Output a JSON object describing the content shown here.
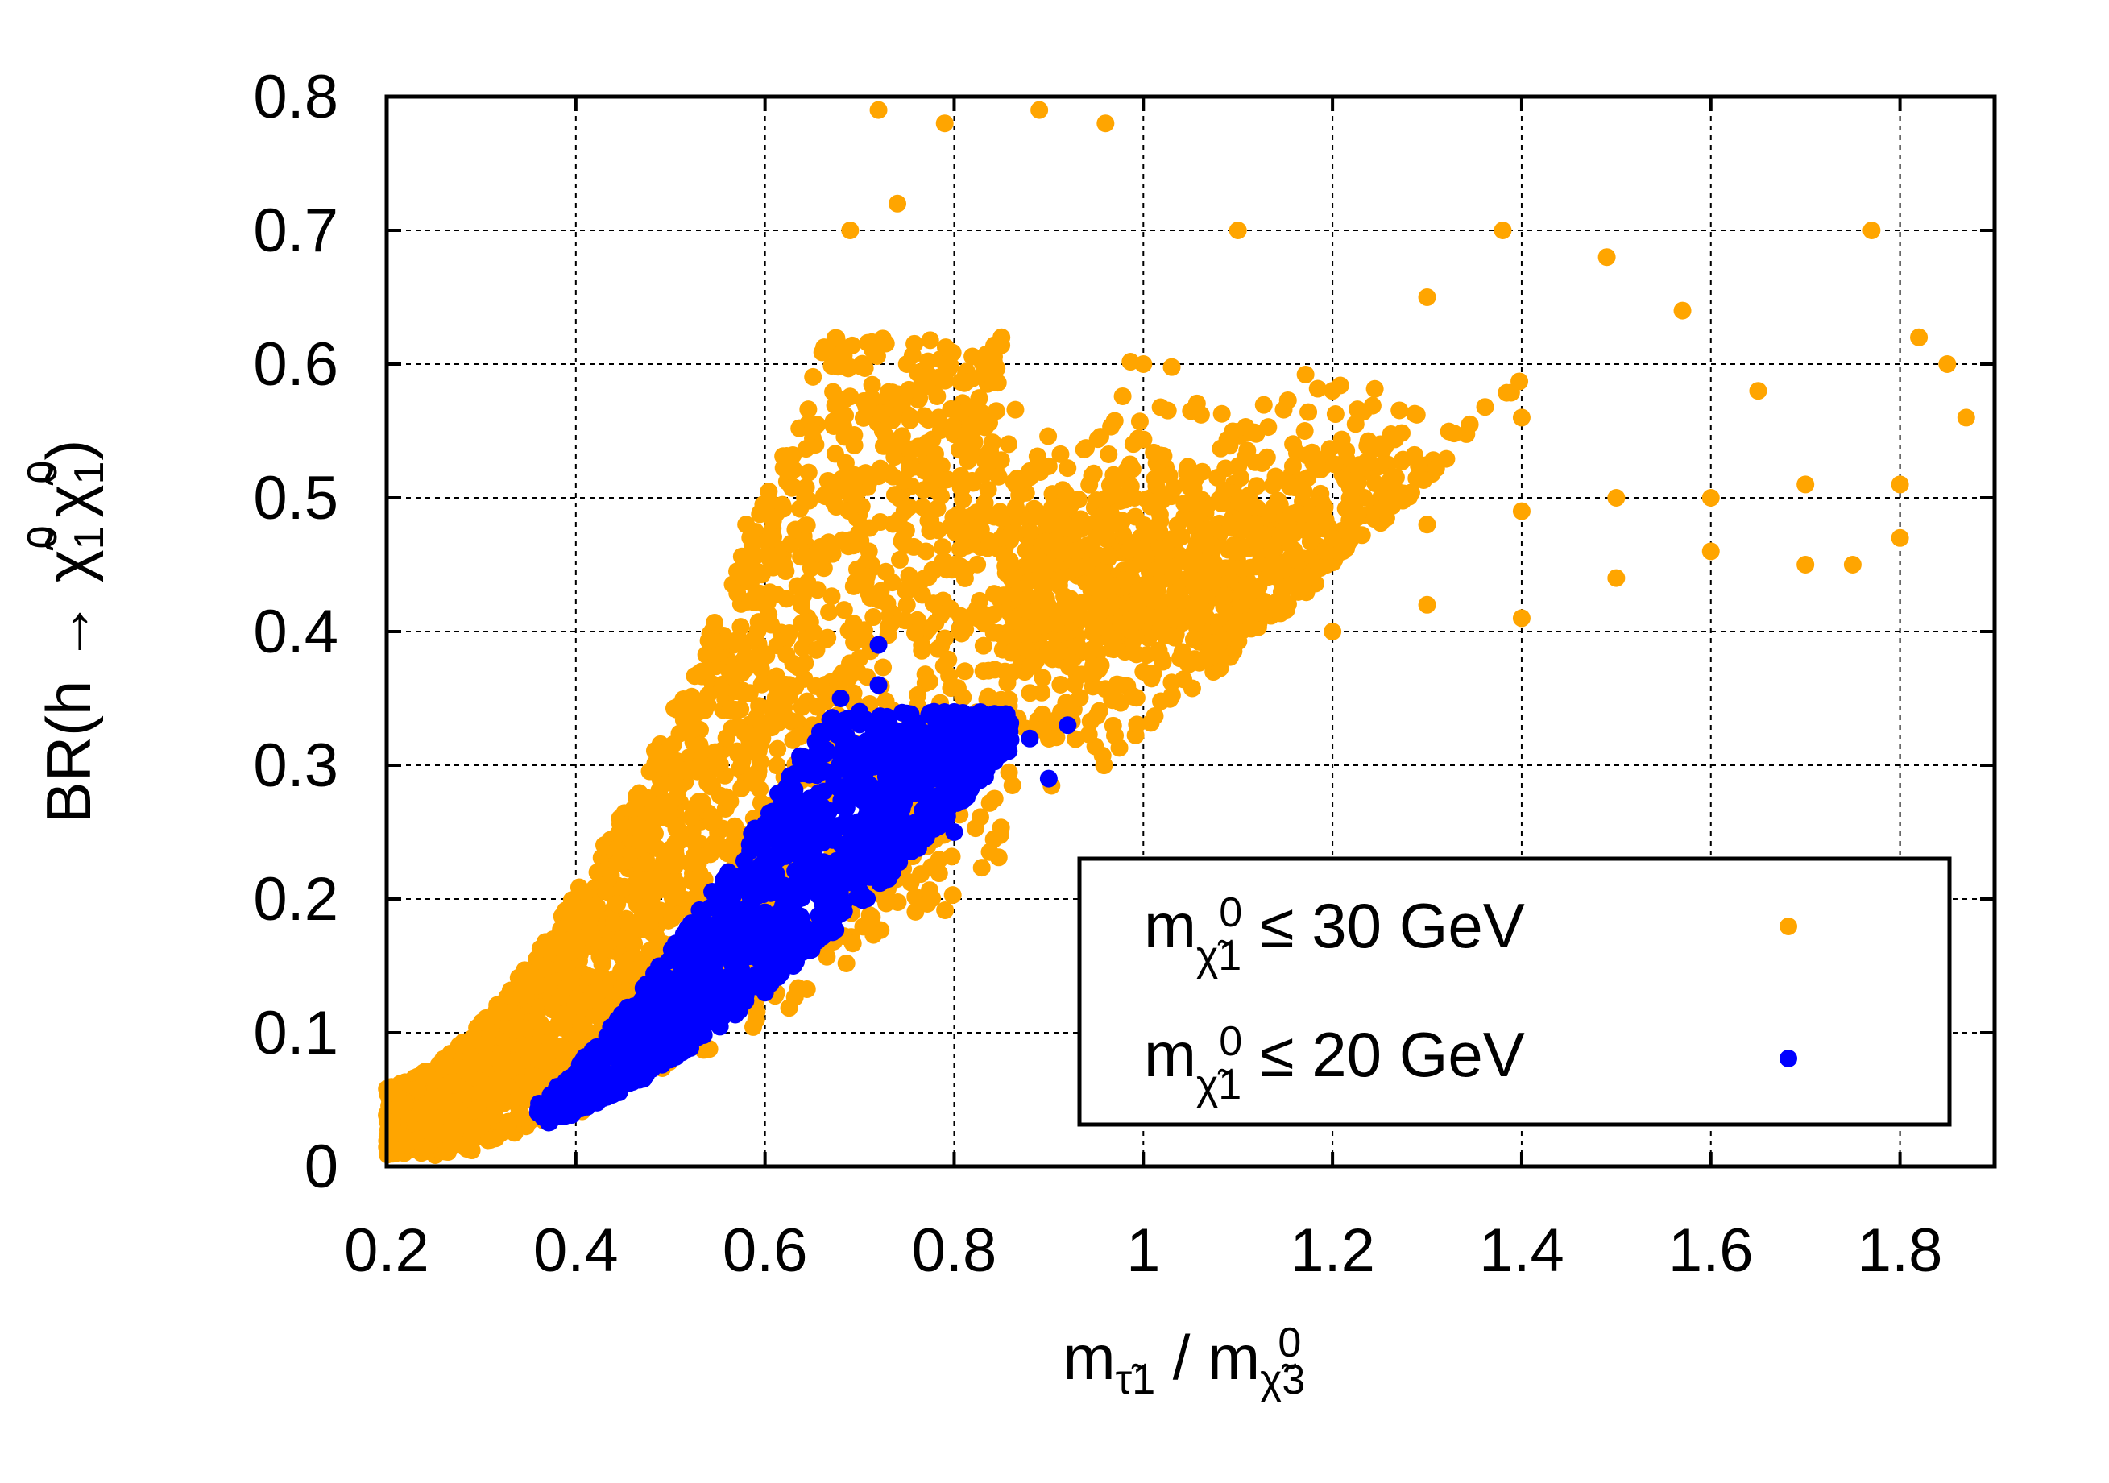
{
  "chart_data": {
    "type": "scatter",
    "title": "",
    "xlabel": "m_{τ̃1} / m_{χ̃3^0}",
    "xlabel_parts": {
      "main1": "m",
      "sub1": "τ̃",
      "sub1_idx": "1",
      "sep": " / ",
      "main2": "m",
      "sub2": "χ̃",
      "sub2_idx": "3",
      "sup2": "0"
    },
    "ylabel": "BR(h → χ̃1^0 χ̃1^0)",
    "ylabel_parts": {
      "pre": "BR(h → ",
      "chi": "χ̃",
      "idx": "1",
      "sup": "0",
      "post": ")"
    },
    "xlim": [
      0.2,
      1.9
    ],
    "ylim": [
      0,
      0.8
    ],
    "grid": true,
    "xticks": [
      "0.2",
      "0.4",
      "0.6",
      "0.8",
      "1",
      "1.2",
      "1.4",
      "1.6",
      "1.8"
    ],
    "xtick_values": [
      0.2,
      0.4,
      0.6,
      0.8,
      1.0,
      1.2,
      1.4,
      1.6,
      1.8
    ],
    "yticks": [
      "0",
      "0.1",
      "0.2",
      "0.3",
      "0.4",
      "0.5",
      "0.6",
      "0.7",
      "0.8"
    ],
    "ytick_values": [
      0,
      0.1,
      0.2,
      0.3,
      0.4,
      0.5,
      0.6,
      0.7,
      0.8
    ],
    "legend_position": "bottom-right",
    "series": [
      {
        "name": "m_{χ̃1^0} ≤ 30 GeV",
        "legend_label": {
          "m": "m",
          "chi": "χ̃",
          "idx": "1",
          "sup": "0",
          "rest": " ≤ 30 GeV"
        },
        "color": "#FFA500",
        "points": [
          [
            0.21,
            0.01
          ],
          [
            0.25,
            0.02
          ],
          [
            0.3,
            0.03
          ],
          [
            0.35,
            0.05
          ],
          [
            0.4,
            0.08
          ],
          [
            0.45,
            0.11
          ],
          [
            0.5,
            0.14
          ],
          [
            0.55,
            0.2
          ],
          [
            0.6,
            0.27
          ],
          [
            0.65,
            0.33
          ],
          [
            0.7,
            0.38
          ],
          [
            0.75,
            0.42
          ],
          [
            0.8,
            0.45
          ],
          [
            0.85,
            0.47
          ],
          [
            0.9,
            0.48
          ],
          [
            0.95,
            0.47
          ],
          [
            1.0,
            0.46
          ],
          [
            1.05,
            0.45
          ],
          [
            1.1,
            0.46
          ],
          [
            1.2,
            0.47
          ],
          [
            1.3,
            0.48
          ],
          [
            1.4,
            0.49
          ],
          [
            1.5,
            0.5
          ],
          [
            1.6,
            0.5
          ],
          [
            1.7,
            0.51
          ],
          [
            1.8,
            0.51
          ],
          [
            1.87,
            0.56
          ],
          [
            0.72,
            0.79
          ],
          [
            0.79,
            0.78
          ],
          [
            0.89,
            0.79
          ],
          [
            0.96,
            0.78
          ],
          [
            0.74,
            0.72
          ],
          [
            0.69,
            0.7
          ],
          [
            1.1,
            0.7
          ],
          [
            1.38,
            0.7
          ],
          [
            1.77,
            0.7
          ],
          [
            1.57,
            0.64
          ],
          [
            1.3,
            0.65
          ],
          [
            1.49,
            0.68
          ],
          [
            0.53,
            0.34
          ],
          [
            0.58,
            0.48
          ],
          [
            0.6,
            0.42
          ],
          [
            0.45,
            0.17
          ],
          [
            0.4,
            0.12
          ],
          [
            0.62,
            0.22
          ],
          [
            0.7,
            0.2
          ],
          [
            0.8,
            0.3
          ],
          [
            0.9,
            0.32
          ],
          [
            1.0,
            0.37
          ],
          [
            1.1,
            0.4
          ],
          [
            1.2,
            0.4
          ],
          [
            1.3,
            0.42
          ],
          [
            1.4,
            0.41
          ],
          [
            1.5,
            0.44
          ],
          [
            1.6,
            0.46
          ],
          [
            1.7,
            0.45
          ],
          [
            1.8,
            0.47
          ],
          [
            1.75,
            0.45
          ],
          [
            1.85,
            0.6
          ],
          [
            1.82,
            0.62
          ],
          [
            1.65,
            0.58
          ],
          [
            1.4,
            0.56
          ],
          [
            1.2,
            0.58
          ],
          [
            1.0,
            0.6
          ],
          [
            0.85,
            0.62
          ],
          [
            0.75,
            0.6
          ],
          [
            0.65,
            0.55
          ],
          [
            0.62,
            0.45
          ],
          [
            0.55,
            0.3
          ],
          [
            0.48,
            0.2
          ],
          [
            0.42,
            0.13
          ],
          [
            0.36,
            0.08
          ]
        ]
      },
      {
        "name": "m_{χ̃1^0} ≤ 20 GeV",
        "legend_label": {
          "m": "m",
          "chi": "χ̃",
          "idx": "1",
          "sup": "0",
          "rest": " ≤ 20 GeV"
        },
        "color": "#0000FF",
        "points": [
          [
            0.36,
            0.04
          ],
          [
            0.38,
            0.045
          ],
          [
            0.4,
            0.05
          ],
          [
            0.42,
            0.06
          ],
          [
            0.45,
            0.075
          ],
          [
            0.48,
            0.09
          ],
          [
            0.5,
            0.1
          ],
          [
            0.52,
            0.115
          ],
          [
            0.55,
            0.14
          ],
          [
            0.57,
            0.16
          ],
          [
            0.6,
            0.19
          ],
          [
            0.62,
            0.21
          ],
          [
            0.64,
            0.23
          ],
          [
            0.66,
            0.25
          ],
          [
            0.68,
            0.27
          ],
          [
            0.7,
            0.29
          ],
          [
            0.72,
            0.31
          ],
          [
            0.74,
            0.3
          ],
          [
            0.76,
            0.29
          ],
          [
            0.78,
            0.3
          ],
          [
            0.8,
            0.31
          ],
          [
            0.82,
            0.32
          ],
          [
            0.85,
            0.31
          ],
          [
            0.88,
            0.32
          ],
          [
            0.92,
            0.33
          ],
          [
            0.9,
            0.29
          ],
          [
            0.72,
            0.39
          ],
          [
            0.7,
            0.34
          ],
          [
            0.68,
            0.35
          ],
          [
            0.72,
            0.36
          ],
          [
            0.58,
            0.22
          ],
          [
            0.55,
            0.2
          ],
          [
            0.63,
            0.15
          ],
          [
            0.66,
            0.18
          ],
          [
            0.7,
            0.22
          ],
          [
            0.74,
            0.24
          ],
          [
            0.78,
            0.26
          ],
          [
            0.8,
            0.25
          ],
          [
            0.6,
            0.13
          ],
          [
            0.56,
            0.12
          ],
          [
            0.5,
            0.08
          ],
          [
            0.46,
            0.065
          ],
          [
            0.43,
            0.055
          ]
        ]
      }
    ]
  }
}
